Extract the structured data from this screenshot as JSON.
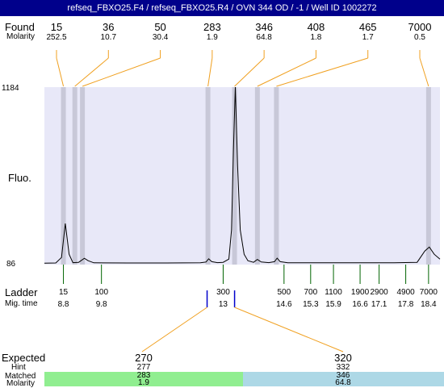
{
  "title": "refseq_FBXO25.F4 / refseq_FBXO25.R4 / OVN 344 OD / -1 / Well ID 1002272",
  "labels": {
    "found": "Found",
    "molarity": "Molarity",
    "fluo": "Fluo.",
    "ladder": "Ladder",
    "mig_time": "Mig. time",
    "expected": "Expected",
    "hint": "Hint",
    "matched": "Matched",
    "molarity_bottom": "Molarity",
    "y_max": "1184",
    "y_min": "86"
  },
  "colors": {
    "title_bg": "#00008b",
    "plot_bg": "#e8e8f8",
    "peak_band": "#c8c8d8",
    "orange_line": "#f0a020",
    "ladder_tick": "#006400",
    "marker_blue": "#0000cc",
    "matched_green": "#90ee90",
    "matched_blue": "#add8e6"
  },
  "chart_data": {
    "type": "line",
    "title": "refseq_FBXO25.F4 / refseq_FBXO25.R4 / OVN 344 OD / -1 / Well ID 1002272",
    "ylabel": "Fluo.",
    "xlabel": "Mig. time",
    "ylim": [
      86,
      1184
    ],
    "xlim": [
      8.3,
      18.7
    ],
    "found_peaks": [
      {
        "size": "15",
        "molarity": "252.5",
        "time": 8.8
      },
      {
        "size": "36",
        "molarity": "10.7",
        "time": 9.1
      },
      {
        "size": "50",
        "molarity": "30.4",
        "time": 9.3
      },
      {
        "size": "283",
        "molarity": "1.9",
        "time": 12.6
      },
      {
        "size": "346",
        "molarity": "64.8",
        "time": 13.3
      },
      {
        "size": "408",
        "molarity": "1.8",
        "time": 13.9
      },
      {
        "size": "465",
        "molarity": "1.7",
        "time": 14.4
      },
      {
        "size": "7000",
        "molarity": "0.5",
        "time": 18.4
      }
    ],
    "ladder": [
      {
        "size": "15",
        "time": "8.8"
      },
      {
        "size": "100",
        "time": "9.8"
      },
      {
        "size": "300",
        "time": "13"
      },
      {
        "size": "500",
        "time": "14.6"
      },
      {
        "size": "700",
        "time": "15.3"
      },
      {
        "size": "1100",
        "time": "15.9"
      },
      {
        "size": "1900",
        "time": "16.6"
      },
      {
        "size": "2900",
        "time": "17.1"
      },
      {
        "size": "4900",
        "time": "17.8"
      },
      {
        "size": "7000",
        "time": "18.4"
      }
    ],
    "trace": [
      [
        8.3,
        95
      ],
      [
        8.6,
        96
      ],
      [
        8.75,
        130
      ],
      [
        8.85,
        340
      ],
      [
        8.95,
        150
      ],
      [
        9.05,
        98
      ],
      [
        9.2,
        100
      ],
      [
        9.35,
        125
      ],
      [
        9.45,
        110
      ],
      [
        9.6,
        97
      ],
      [
        10.5,
        96
      ],
      [
        11.5,
        96
      ],
      [
        12.4,
        97
      ],
      [
        12.55,
        102
      ],
      [
        12.62,
        122
      ],
      [
        12.7,
        104
      ],
      [
        12.85,
        98
      ],
      [
        13.0,
        100
      ],
      [
        13.15,
        120
      ],
      [
        13.22,
        300
      ],
      [
        13.27,
        800
      ],
      [
        13.32,
        1184
      ],
      [
        13.38,
        700
      ],
      [
        13.45,
        300
      ],
      [
        13.55,
        150
      ],
      [
        13.65,
        110
      ],
      [
        13.8,
        100
      ],
      [
        13.9,
        118
      ],
      [
        14.0,
        102
      ],
      [
        14.2,
        98
      ],
      [
        14.35,
        104
      ],
      [
        14.42,
        126
      ],
      [
        14.5,
        104
      ],
      [
        14.7,
        97
      ],
      [
        16.0,
        97
      ],
      [
        17.5,
        97
      ],
      [
        18.1,
        100
      ],
      [
        18.3,
        170
      ],
      [
        18.42,
        195
      ],
      [
        18.55,
        150
      ],
      [
        18.7,
        120
      ]
    ],
    "expected": [
      {
        "expected": "270",
        "hint": "277",
        "matched": "283",
        "molarity": "1.9"
      },
      {
        "expected": "320",
        "hint": "332",
        "matched": "346",
        "molarity": "64.8"
      }
    ],
    "grid": false
  }
}
